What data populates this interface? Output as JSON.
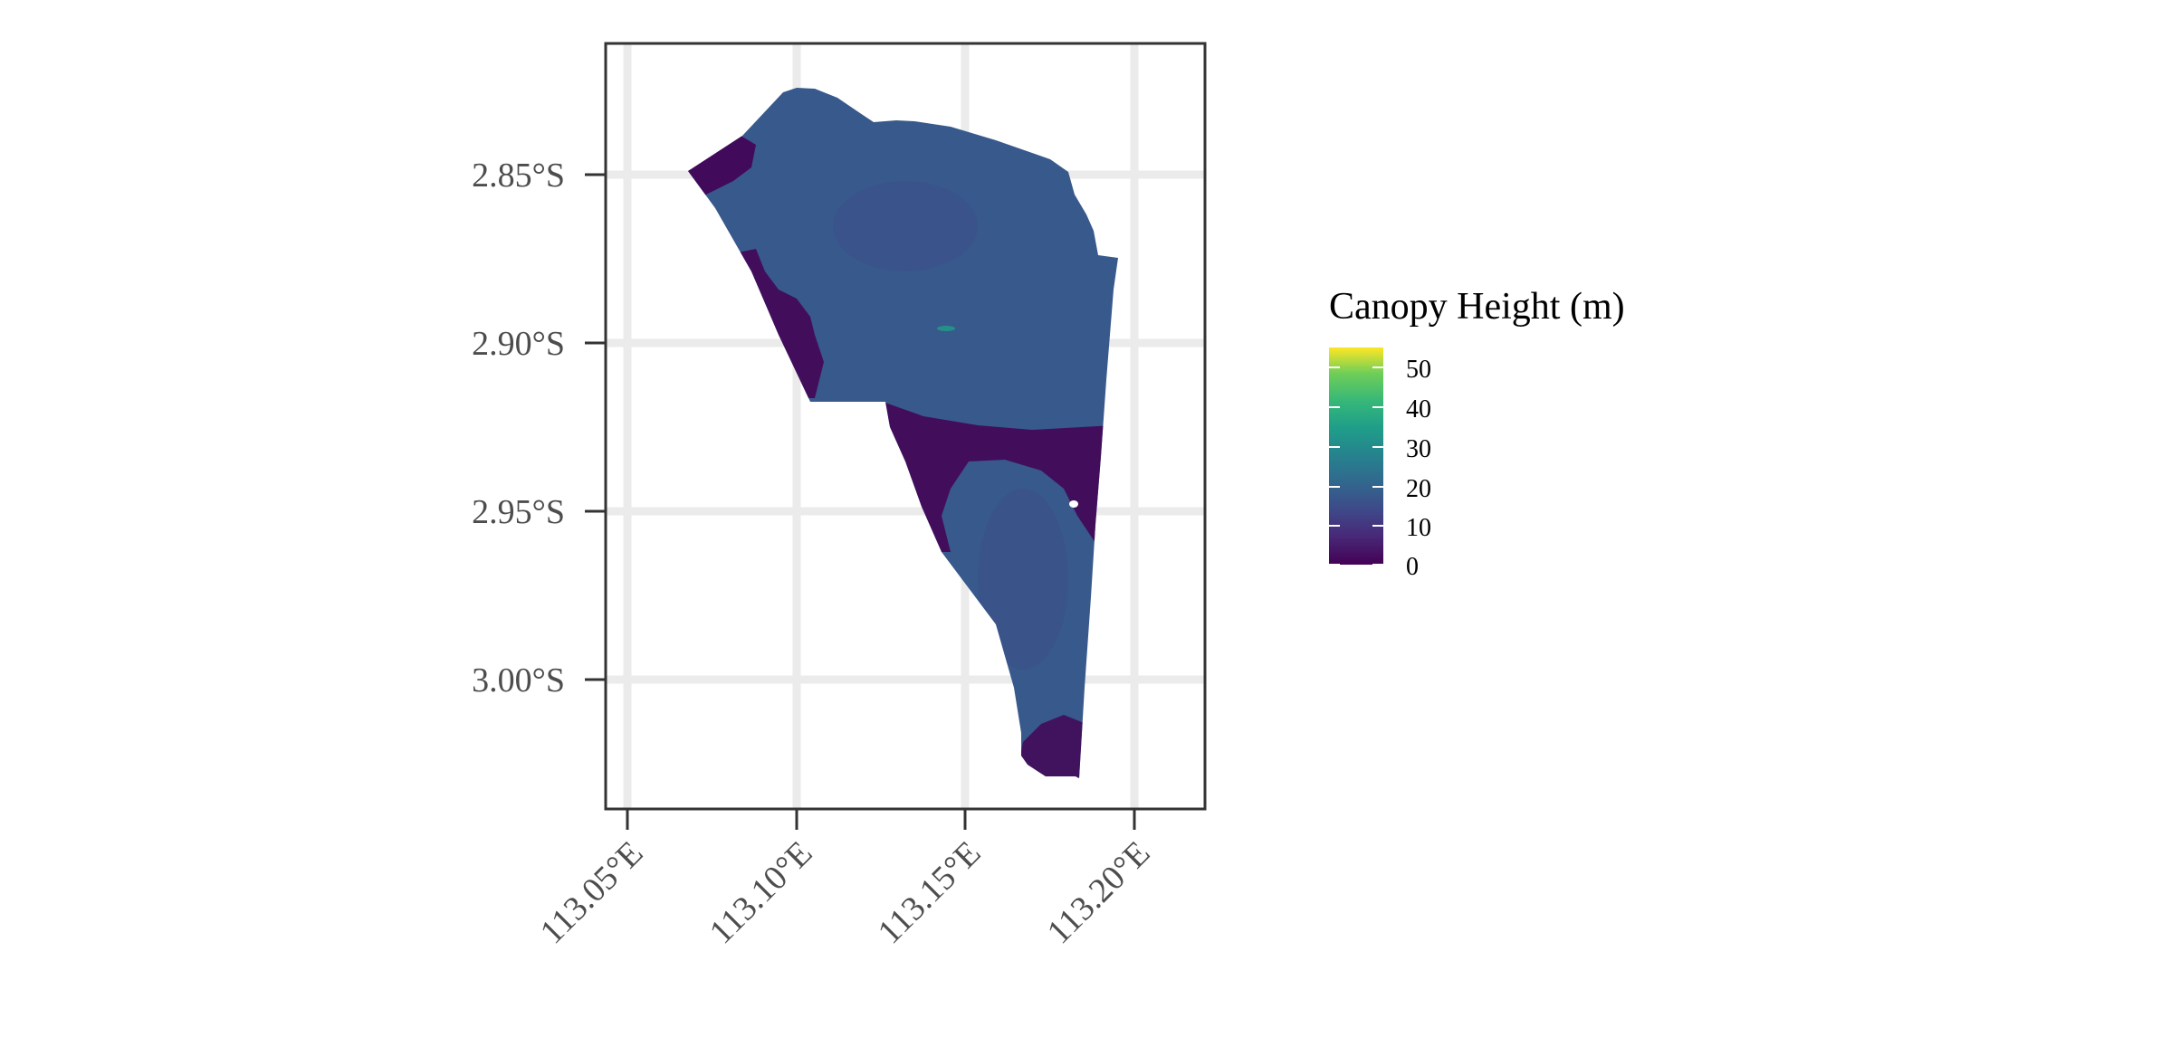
{
  "map": {
    "x_axis": {
      "ticks": [
        "113.05°E",
        "113.10°E",
        "113.15°E",
        "113.20°E"
      ]
    },
    "y_axis": {
      "ticks": [
        "2.85°S",
        "2.90°S",
        "2.95°S",
        "3.00°S"
      ]
    },
    "legend": {
      "title": "Canopy Height (m)",
      "labels": [
        "50",
        "40",
        "30",
        "20",
        "10",
        "0"
      ],
      "range": [
        0,
        55
      ],
      "palette": "viridis"
    },
    "colors": {
      "grid": "#ebebeb",
      "panel_border": "#333333",
      "forest_fill": "#38598c",
      "low_canopy": "#440154",
      "mid_patch": "#1f9e89"
    }
  }
}
